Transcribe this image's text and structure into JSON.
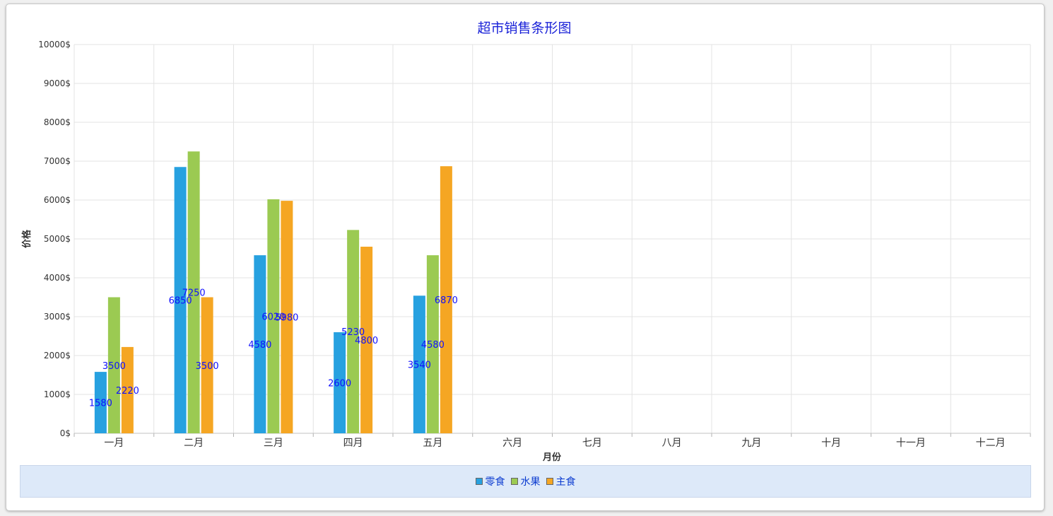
{
  "chart_data": {
    "type": "bar",
    "title": "超市销售条形图",
    "xlabel": "月份",
    "ylabel": "价格",
    "ylim": [
      0,
      10000
    ],
    "y_ticks": [
      "0$",
      "1000$",
      "2000$",
      "3000$",
      "4000$",
      "5000$",
      "6000$",
      "7000$",
      "8000$",
      "9000$",
      "10000$"
    ],
    "categories": [
      "一月",
      "二月",
      "三月",
      "四月",
      "五月",
      "六月",
      "七月",
      "八月",
      "九月",
      "十月",
      "十一月",
      "十二月"
    ],
    "series": [
      {
        "name": "零食",
        "color": "#27a1e0",
        "values": [
          1580,
          6850,
          4580,
          2600,
          3540,
          null,
          null,
          null,
          null,
          null,
          null,
          null
        ]
      },
      {
        "name": "水果",
        "color": "#9bca52",
        "values": [
          3500,
          7250,
          6020,
          5230,
          4580,
          null,
          null,
          null,
          null,
          null,
          null,
          null
        ]
      },
      {
        "name": "主食",
        "color": "#f5a623",
        "values": [
          2220,
          3500,
          5980,
          4800,
          6870,
          null,
          null,
          null,
          null,
          null,
          null,
          null
        ]
      }
    ],
    "data_labels": [
      [
        "1580",
        "6850",
        "4580",
        "2600",
        "3540"
      ],
      [
        "3500",
        "7250",
        "6020",
        "5230",
        "4580"
      ],
      [
        "2220",
        "3500",
        "5980",
        "4800",
        "6870"
      ]
    ],
    "grid": true,
    "legend_position": "bottom"
  },
  "colors": {
    "title": "#1a22d8",
    "data_label": "#1010ff",
    "axis_text": "#333333",
    "grid": "#e3e3e3"
  }
}
